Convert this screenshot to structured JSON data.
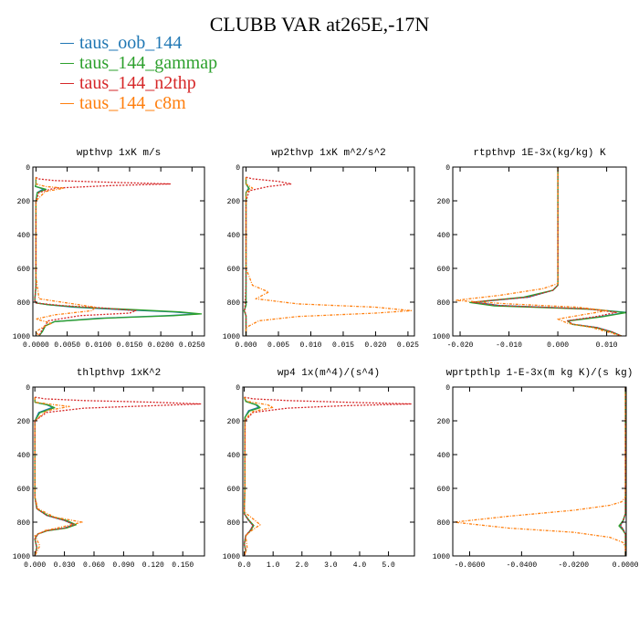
{
  "title": "CLUBB VAR at265E,-17N",
  "legend": [
    {
      "name": "taus_oob_144",
      "color": "#1f77b4"
    },
    {
      "name": "taus_144_gammap",
      "color": "#2ca02c"
    },
    {
      "name": "taus_144_n2thp",
      "color": "#d62728"
    },
    {
      "name": "taus_144_c8m",
      "color": "#ff7f0e"
    }
  ],
  "chart_data": [
    {
      "type": "line",
      "title": "wpthvp  1xK m/s",
      "xlim": [
        -0.0005,
        0.027
      ],
      "ylim": [
        1000,
        0
      ],
      "xticks": [
        "0.0000",
        "0.0050",
        "0.0100",
        "0.0150",
        "0.0200",
        "0.0250"
      ],
      "xtick_values": [
        0,
        0.005,
        0.01,
        0.015,
        0.02,
        0.025
      ],
      "yticks": [
        "0",
        "200",
        "400",
        "600",
        "800",
        "1000"
      ],
      "ytick_values": [
        0,
        200,
        400,
        600,
        800,
        1000
      ],
      "series": [
        {
          "name": "taus_oob_144",
          "x": [
            0.0,
            0.0,
            -0.0001,
            0.0012,
            0.0002,
            0.0,
            0.0,
            0.0,
            -0.0002,
            0.0,
            0.002,
            0.006,
            0.014,
            0.022,
            0.026,
            0.021,
            0.01,
            0.003,
            0.0015,
            0.001,
            0.0005
          ],
          "y": [
            60,
            100,
            115,
            130,
            150,
            200,
            400,
            700,
            790,
            805,
            815,
            830,
            845,
            858,
            870,
            880,
            895,
            915,
            940,
            975,
            1000
          ]
        },
        {
          "name": "taus_144_gammap",
          "x": [
            0.0,
            0.0,
            -0.0001,
            0.0016,
            0.0002,
            0.0,
            0.0,
            0.0,
            -0.0002,
            0.0,
            0.002,
            0.007,
            0.016,
            0.023,
            0.0265,
            0.022,
            0.011,
            0.003,
            0.0015,
            0.001,
            0.0005
          ],
          "y": [
            60,
            100,
            115,
            132,
            152,
            200,
            400,
            700,
            790,
            805,
            815,
            830,
            845,
            858,
            870,
            880,
            895,
            915,
            940,
            975,
            1000
          ]
        },
        {
          "name": "taus_144_n2thp",
          "x": [
            0.0,
            0.0003,
            0.003,
            0.012,
            0.0215,
            0.012,
            0.003,
            0.0005,
            0.0,
            0.0,
            0.0,
            -0.0002,
            0.0,
            0.004,
            0.011,
            0.016,
            0.015,
            0.007,
            0.002,
            0.001,
            0.0005
          ],
          "y": [
            60,
            70,
            80,
            90,
            100,
            110,
            125,
            150,
            200,
            400,
            700,
            790,
            805,
            820,
            835,
            850,
            865,
            880,
            910,
            960,
            1000
          ]
        },
        {
          "name": "taus_144_c8m",
          "x": [
            0.0,
            0.0,
            0.0015,
            0.0045,
            0.0015,
            0.0,
            0.0,
            0.0,
            0.0005,
            0.006,
            0.0095,
            0.009,
            0.003,
            0.0,
            0.0025,
            0.001,
            0.0,
            0.0005
          ],
          "y": [
            60,
            100,
            115,
            125,
            145,
            200,
            400,
            650,
            780,
            810,
            830,
            850,
            875,
            900,
            925,
            950,
            975,
            1000
          ]
        }
      ]
    },
    {
      "type": "line",
      "title": "wp2thvp  1xK m^2/s^2",
      "xlim": [
        -0.0005,
        0.026
      ],
      "ylim": [
        1000,
        0
      ],
      "xticks": [
        "0.000",
        "0.005",
        "0.010",
        "0.015",
        "0.020",
        "0.025"
      ],
      "xtick_values": [
        0,
        0.005,
        0.01,
        0.015,
        0.02,
        0.025
      ],
      "yticks": [
        "0",
        "200",
        "400",
        "600",
        "800",
        "1000"
      ],
      "ytick_values": [
        0,
        200,
        400,
        600,
        800,
        1000
      ],
      "series": [
        {
          "name": "taus_oob_144",
          "x": [
            0.0,
            0.0,
            0.0004,
            0.0,
            0.0,
            0.0,
            0.0,
            -0.0003,
            0.0,
            0.0
          ],
          "y": [
            60,
            100,
            125,
            150,
            200,
            700,
            820,
            850,
            880,
            1000
          ]
        },
        {
          "name": "taus_144_gammap",
          "x": [
            0.0,
            0.0,
            0.0005,
            0.0,
            0.0,
            0.0,
            0.0,
            -0.0003,
            0.0,
            0.0
          ],
          "y": [
            60,
            100,
            127,
            152,
            200,
            700,
            820,
            850,
            880,
            1000
          ]
        },
        {
          "name": "taus_144_n2thp",
          "x": [
            0.0,
            0.001,
            0.005,
            0.007,
            0.0035,
            0.0005,
            0.0,
            0.0,
            -0.0002,
            0.0,
            0.0
          ],
          "y": [
            60,
            70,
            85,
            100,
            115,
            140,
            200,
            700,
            850,
            880,
            1000
          ]
        },
        {
          "name": "taus_144_c8m",
          "x": [
            0.0,
            0.0,
            0.001,
            0.0,
            0.0,
            0.0,
            0.001,
            0.0035,
            0.0015,
            0.008,
            0.02,
            0.0255,
            0.02,
            0.008,
            0.002,
            0.0,
            0.0
          ],
          "y": [
            60,
            100,
            125,
            150,
            200,
            600,
            700,
            740,
            780,
            810,
            830,
            850,
            865,
            885,
            910,
            950,
            1000
          ]
        }
      ]
    },
    {
      "type": "line",
      "title": "rtpthvp  1E-3x(kg/kg) K",
      "xlim": [
        -0.0215,
        0.014
      ],
      "ylim": [
        1000,
        0
      ],
      "xticks": [
        "-0.020",
        "-0.010",
        "0.000",
        "0.010"
      ],
      "xtick_values": [
        -0.02,
        -0.01,
        0,
        0.01
      ],
      "yticks": [
        "0",
        "200",
        "400",
        "600",
        "800",
        "1000"
      ],
      "ytick_values": [
        0,
        200,
        400,
        600,
        800,
        1000
      ],
      "series": [
        {
          "name": "taus_oob_144",
          "x": [
            0.0,
            0.0,
            0.0,
            -0.001,
            -0.006,
            -0.017,
            -0.012,
            0.006,
            0.014,
            0.009,
            0.002,
            0.003,
            0.008,
            0.011,
            0.013
          ],
          "y": [
            0,
            400,
            700,
            730,
            770,
            800,
            820,
            840,
            860,
            885,
            910,
            930,
            950,
            975,
            1000
          ]
        },
        {
          "name": "taus_144_gammap",
          "x": [
            0.0,
            0.0,
            0.0,
            -0.001,
            -0.007,
            -0.018,
            -0.013,
            0.007,
            0.014,
            0.009,
            0.002,
            0.003,
            0.008,
            0.011,
            0.013
          ],
          "y": [
            0,
            400,
            700,
            730,
            770,
            802,
            822,
            842,
            862,
            887,
            912,
            932,
            952,
            977,
            1000
          ]
        },
        {
          "name": "taus_144_n2thp",
          "x": [
            0.0,
            0.0,
            0.0,
            -0.001,
            -0.006,
            -0.0175,
            -0.012,
            0.006,
            0.012,
            0.008,
            0.002,
            0.003,
            0.008,
            0.011,
            0.013
          ],
          "y": [
            0,
            400,
            700,
            730,
            770,
            800,
            820,
            840,
            860,
            885,
            910,
            930,
            950,
            975,
            1000
          ]
        },
        {
          "name": "taus_144_c8m",
          "x": [
            0.0,
            0.0,
            0.0,
            -0.003,
            -0.012,
            -0.021,
            -0.01,
            0.004,
            0.01,
            0.005,
            0.0,
            0.002,
            0.007,
            0.01,
            0.013
          ],
          "y": [
            0,
            400,
            690,
            720,
            760,
            790,
            810,
            830,
            850,
            875,
            900,
            925,
            950,
            975,
            1000
          ]
        }
      ]
    },
    {
      "type": "line",
      "title": "thlpthvp  1xK^2",
      "xlim": [
        -0.002,
        0.172
      ],
      "ylim": [
        1000,
        0
      ],
      "xticks": [
        "0.000",
        "0.030",
        "0.060",
        "0.090",
        "0.120",
        "0.150"
      ],
      "xtick_values": [
        0,
        0.03,
        0.06,
        0.09,
        0.12,
        0.15
      ],
      "yticks": [
        "0",
        "200",
        "400",
        "600",
        "800",
        "1000"
      ],
      "ytick_values": [
        0,
        200,
        400,
        600,
        800,
        1000
      ],
      "series": [
        {
          "name": "taus_oob_144",
          "x": [
            0.0,
            0.0,
            0.012,
            0.018,
            0.004,
            0.0,
            0.0,
            0.002,
            0.012,
            0.03,
            0.04,
            0.03,
            0.012,
            0.003,
            0.0,
            0.002,
            0.0
          ],
          "y": [
            60,
            90,
            105,
            120,
            150,
            200,
            650,
            720,
            760,
            790,
            815,
            835,
            850,
            870,
            900,
            950,
            1000
          ]
        },
        {
          "name": "taus_144_gammap",
          "x": [
            0.0,
            0.0,
            0.014,
            0.02,
            0.005,
            0.0,
            0.0,
            0.002,
            0.013,
            0.032,
            0.042,
            0.032,
            0.013,
            0.003,
            0.0,
            0.002,
            0.0
          ],
          "y": [
            60,
            90,
            107,
            122,
            152,
            200,
            650,
            720,
            760,
            790,
            815,
            835,
            850,
            870,
            900,
            950,
            1000
          ]
        },
        {
          "name": "taus_144_n2thp",
          "x": [
            0.0,
            0.01,
            0.05,
            0.12,
            0.168,
            0.12,
            0.05,
            0.012,
            0.0,
            0.0,
            0.0,
            0.002,
            0.012,
            0.03,
            0.04,
            0.03,
            0.012,
            0.003,
            0.0,
            0.002,
            0.0
          ],
          "y": [
            60,
            70,
            80,
            90,
            100,
            110,
            125,
            150,
            200,
            400,
            650,
            720,
            760,
            790,
            815,
            835,
            850,
            870,
            900,
            950,
            1000
          ]
        },
        {
          "name": "taus_144_c8m",
          "x": [
            0.0,
            0.0,
            0.02,
            0.035,
            0.012,
            0.0,
            0.0,
            0.003,
            0.02,
            0.048,
            0.03,
            0.01,
            0.0,
            0.005,
            0.0
          ],
          "y": [
            60,
            90,
            105,
            115,
            140,
            200,
            650,
            720,
            770,
            800,
            825,
            850,
            880,
            940,
            1000
          ]
        }
      ]
    },
    {
      "type": "line",
      "title": "wp4  1x(m^4)/(s^4)",
      "xlim": [
        -0.05,
        5.9
      ],
      "ylim": [
        1000,
        0
      ],
      "xticks": [
        "0.0",
        "1.0",
        "2.0",
        "3.0",
        "4.0",
        "5.0"
      ],
      "xtick_values": [
        0,
        1,
        2,
        3,
        4,
        5
      ],
      "yticks": [
        "0",
        "200",
        "400",
        "600",
        "800",
        "1000"
      ],
      "ytick_values": [
        0,
        200,
        400,
        600,
        800,
        1000
      ],
      "series": [
        {
          "name": "taus_oob_144",
          "x": [
            0.0,
            0.05,
            0.4,
            0.5,
            0.15,
            0.02,
            0.02,
            0.0,
            0.15,
            0.3,
            0.2,
            0.05,
            0.0,
            0.05,
            0.0
          ],
          "y": [
            60,
            85,
            105,
            120,
            140,
            180,
            600,
            750,
            790,
            820,
            850,
            880,
            930,
            970,
            1000
          ]
        },
        {
          "name": "taus_144_gammap",
          "x": [
            0.0,
            0.05,
            0.45,
            0.55,
            0.18,
            0.02,
            0.02,
            0.0,
            0.17,
            0.33,
            0.22,
            0.05,
            0.0,
            0.05,
            0.0
          ],
          "y": [
            60,
            85,
            107,
            122,
            142,
            180,
            600,
            750,
            790,
            820,
            850,
            880,
            930,
            970,
            1000
          ]
        },
        {
          "name": "taus_144_n2thp",
          "x": [
            0.0,
            0.3,
            1.5,
            3.5,
            5.8,
            3.5,
            1.5,
            0.3,
            0.03,
            0.02,
            0.0,
            0.15,
            0.3,
            0.2,
            0.05,
            0.0,
            0.05,
            0.0
          ],
          "y": [
            60,
            70,
            80,
            90,
            100,
            110,
            125,
            150,
            200,
            600,
            750,
            790,
            820,
            850,
            880,
            930,
            970,
            1000
          ]
        },
        {
          "name": "taus_144_c8m",
          "x": [
            0.0,
            0.1,
            0.8,
            1.0,
            0.3,
            0.03,
            0.03,
            0.0,
            0.3,
            0.55,
            0.25,
            0.05,
            0.1,
            0.0
          ],
          "y": [
            60,
            85,
            105,
            120,
            145,
            190,
            600,
            740,
            780,
            815,
            850,
            880,
            950,
            1000
          ]
        }
      ]
    },
    {
      "type": "line",
      "title": "wprtpthlp  1-E-3x(m kg K)/(s kg)",
      "xlim": [
        -0.0665,
        0.0003
      ],
      "ylim": [
        1000,
        0
      ],
      "xticks": [
        "-0.0600",
        "-0.0400",
        "-0.0200",
        "0.0000"
      ],
      "xtick_values": [
        -0.06,
        -0.04,
        -0.02,
        0
      ],
      "yticks": [
        "0",
        "200",
        "400",
        "600",
        "800",
        "1000"
      ],
      "ytick_values": [
        0,
        200,
        400,
        600,
        800,
        1000
      ],
      "series": [
        {
          "name": "taus_oob_144",
          "x": [
            0.0,
            0.0,
            0.0,
            -0.0008,
            -0.002,
            -0.0008,
            0.0,
            0.0
          ],
          "y": [
            0,
            400,
            750,
            790,
            820,
            845,
            870,
            1000
          ]
        },
        {
          "name": "taus_144_gammap",
          "x": [
            0.0,
            0.0,
            0.0,
            -0.001,
            -0.0025,
            -0.001,
            0.0,
            0.0
          ],
          "y": [
            0,
            400,
            750,
            792,
            822,
            847,
            872,
            1000
          ]
        },
        {
          "name": "taus_144_n2thp",
          "x": [
            0.0,
            0.0,
            0.0,
            -0.0008,
            -0.0018,
            -0.0008,
            0.0,
            0.0
          ],
          "y": [
            0,
            400,
            750,
            790,
            820,
            845,
            870,
            1000
          ]
        },
        {
          "name": "taus_144_c8m",
          "x": [
            0.0,
            0.0,
            0.0,
            -0.0015,
            -0.006,
            -0.02,
            -0.045,
            -0.066,
            -0.045,
            -0.02,
            -0.006,
            -0.001,
            0.0,
            0.0
          ],
          "y": [
            0,
            400,
            650,
            680,
            700,
            730,
            765,
            800,
            835,
            860,
            890,
            920,
            950,
            1000
          ]
        }
      ]
    }
  ]
}
